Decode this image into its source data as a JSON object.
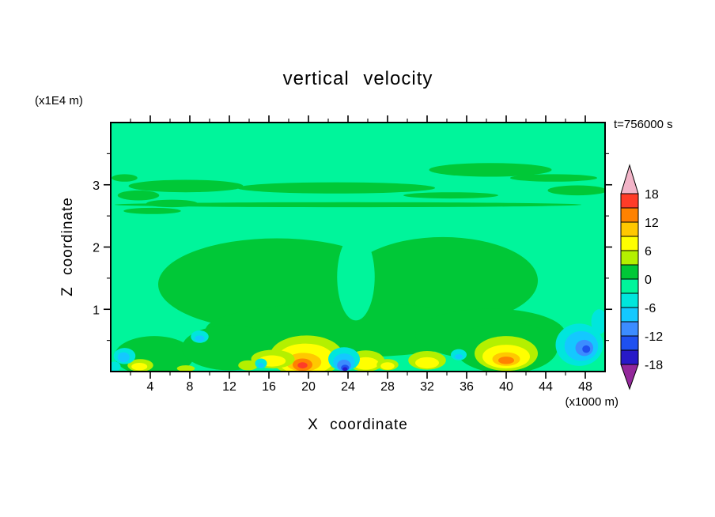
{
  "chart_data": {
    "type": "filled_contour",
    "title": "vertical velocity",
    "xlabel": "X coordinate",
    "ylabel": "Z coordinate",
    "x_axis_unit": "(x1000 m)",
    "y_axis_unit": "(x1E4 m)",
    "time_label": "t=756000 s",
    "xlim": [
      0,
      50
    ],
    "ylim": [
      0,
      4
    ],
    "x_ticks": [
      4,
      8,
      12,
      16,
      20,
      24,
      28,
      32,
      36,
      40,
      44,
      48
    ],
    "x_minor_step": 2,
    "y_ticks": [
      1,
      2,
      3
    ],
    "y_minor_step": 0.5,
    "contour_interval": 3,
    "palette": {
      "red": "#FF3C28",
      "orange": "#FF8200",
      "amber": "#FFC800",
      "yellow": "#FFFF00",
      "yellowgreen": "#B4F000",
      "green": "#00C837",
      "mint": "#00F59B",
      "teal": "#00E6DC",
      "cyan": "#14C8FF",
      "lightblue": "#3C8CFF",
      "blue": "#1E50F0",
      "navy": "#2819C8",
      "pink": "#F2B4C8",
      "purple": "#93289B"
    },
    "colorbar": {
      "labels": [
        18,
        12,
        6,
        0,
        -6,
        -12,
        -18
      ],
      "bands_top_to_bottom": [
        "red",
        "orange",
        "amber",
        "yellow",
        "yellowgreen",
        "green",
        "mint",
        "teal",
        "cyan",
        "lightblue",
        "blue",
        "navy"
      ],
      "band_values_top_to_bottom": [
        "15..18",
        "12..15",
        "9..12",
        "6..9",
        "3..6",
        "0..3",
        "-3..0",
        "-6..-3",
        "-9..-6",
        "-12..-9",
        "-15..-12",
        "-18..-15"
      ],
      "arrow_top_band": "pink",
      "arrow_bottom_band": "purple"
    },
    "field": {
      "background_band": "mint",
      "feature_format": [
        "band",
        "x_center(x1000m)",
        "z_center(x1E4m)",
        "x_radius",
        "z_radius"
      ],
      "features": [
        [
          "green",
          38.4,
          3.24,
          6.2,
          0.11
        ],
        [
          "green",
          44.8,
          3.11,
          4.4,
          0.06
        ],
        [
          "green",
          22.8,
          2.95,
          10.0,
          0.09
        ],
        [
          "green",
          7.6,
          2.98,
          5.8,
          0.1
        ],
        [
          "green",
          24.0,
          2.68,
          23.6,
          0.04
        ],
        [
          "green",
          2.8,
          2.83,
          2.1,
          0.08
        ],
        [
          "green",
          6.2,
          2.7,
          2.6,
          0.06
        ],
        [
          "green",
          4.2,
          2.58,
          2.9,
          0.05
        ],
        [
          "green",
          1.4,
          3.11,
          1.3,
          0.06
        ],
        [
          "green",
          47.2,
          2.91,
          3.0,
          0.08
        ],
        [
          "green",
          34.4,
          2.83,
          4.8,
          0.05
        ],
        [
          "green",
          16.8,
          1.4,
          12.0,
          0.74
        ],
        [
          "green",
          33.6,
          1.46,
          9.6,
          0.7
        ],
        [
          "green",
          24.0,
          0.67,
          14.4,
          0.44
        ],
        [
          "green",
          38.4,
          0.6,
          7.6,
          0.41
        ],
        [
          "green",
          40.0,
          0.38,
          5.2,
          0.41
        ],
        [
          "green",
          4.4,
          0.25,
          4.0,
          0.32
        ],
        [
          "green",
          12.0,
          0.38,
          4.8,
          0.36
        ],
        [
          "mint",
          24.8,
          1.52,
          1.9,
          0.7
        ],
        [
          "yellowgreen",
          19.8,
          0.25,
          3.7,
          0.33
        ],
        [
          "yellow",
          19.7,
          0.2,
          2.9,
          0.25
        ],
        [
          "amber",
          19.5,
          0.15,
          1.8,
          0.15
        ],
        [
          "orange",
          19.4,
          0.11,
          1.0,
          0.1
        ],
        [
          "red",
          19.4,
          0.1,
          0.5,
          0.05
        ],
        [
          "yellowgreen",
          16.4,
          0.2,
          2.2,
          0.15
        ],
        [
          "yellow",
          16.3,
          0.17,
          1.4,
          0.09
        ],
        [
          "yellowgreen",
          13.9,
          0.1,
          1.0,
          0.08
        ],
        [
          "yellowgreen",
          25.8,
          0.17,
          1.9,
          0.17
        ],
        [
          "yellow",
          25.8,
          0.13,
          1.3,
          0.1
        ],
        [
          "yellowgreen",
          28.0,
          0.11,
          1.1,
          0.09
        ],
        [
          "yellow",
          28.0,
          0.09,
          0.7,
          0.06
        ],
        [
          "yellowgreen",
          32.0,
          0.18,
          1.9,
          0.15
        ],
        [
          "yellow",
          32.0,
          0.14,
          1.2,
          0.09
        ],
        [
          "yellowgreen",
          40.0,
          0.29,
          3.2,
          0.28
        ],
        [
          "yellow",
          40.0,
          0.24,
          2.4,
          0.19
        ],
        [
          "amber",
          40.0,
          0.2,
          1.4,
          0.11
        ],
        [
          "orange",
          40.0,
          0.18,
          0.8,
          0.06
        ],
        [
          "yellowgreen",
          3.0,
          0.1,
          1.3,
          0.1
        ],
        [
          "yellow",
          2.9,
          0.08,
          0.8,
          0.06
        ],
        [
          "yellowgreen",
          7.6,
          0.05,
          0.9,
          0.05
        ],
        [
          "teal",
          23.6,
          0.2,
          1.6,
          0.19
        ],
        [
          "cyan",
          23.6,
          0.15,
          1.1,
          0.14
        ],
        [
          "lightblue",
          23.6,
          0.1,
          0.7,
          0.09
        ],
        [
          "blue",
          23.7,
          0.06,
          0.4,
          0.05
        ],
        [
          "navy",
          23.7,
          0.04,
          0.24,
          0.03
        ],
        [
          "teal",
          47.4,
          0.43,
          2.4,
          0.34
        ],
        [
          "cyan",
          47.6,
          0.41,
          1.7,
          0.24
        ],
        [
          "lightblue",
          47.9,
          0.38,
          0.9,
          0.13
        ],
        [
          "blue",
          48.1,
          0.36,
          0.4,
          0.06
        ],
        [
          "teal",
          49.4,
          0.8,
          0.8,
          0.2
        ],
        [
          "teal",
          9.0,
          0.56,
          0.9,
          0.1
        ],
        [
          "cyan",
          9.0,
          0.53,
          0.5,
          0.05
        ],
        [
          "teal",
          1.4,
          0.25,
          1.1,
          0.13
        ],
        [
          "cyan",
          1.3,
          0.23,
          0.6,
          0.08
        ],
        [
          "teal",
          0.4,
          0.08,
          0.6,
          0.08
        ],
        [
          "teal",
          35.2,
          0.27,
          0.8,
          0.09
        ],
        [
          "cyan",
          35.2,
          0.24,
          0.4,
          0.04
        ],
        [
          "teal",
          15.2,
          0.13,
          0.6,
          0.08
        ],
        [
          "cyan",
          15.2,
          0.1,
          0.3,
          0.04
        ]
      ]
    }
  }
}
